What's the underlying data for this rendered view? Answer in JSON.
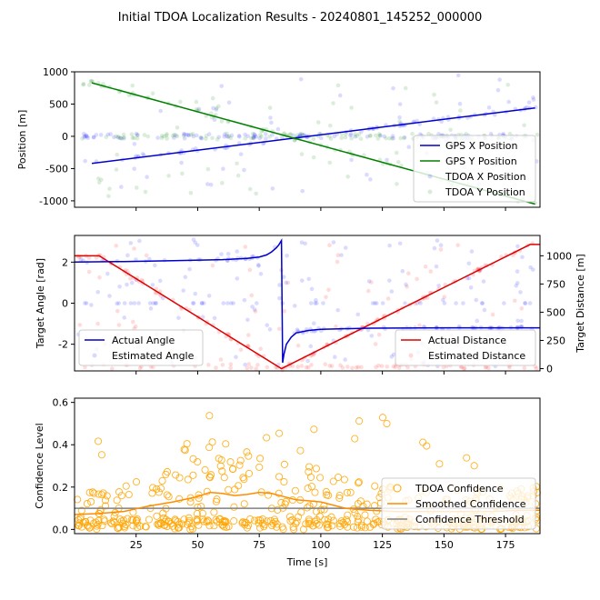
{
  "title": "Initial TDOA Localization Results - 20240801_145252_000000",
  "chart_data": [
    {
      "id": "position",
      "type": "line",
      "xlabel": "",
      "ylabel": "Position [m]",
      "xlim": [
        0,
        189
      ],
      "ylim": [
        -1100,
        1000
      ],
      "yticks": [
        1000,
        500,
        0,
        -500,
        -1000
      ],
      "legend_position": "lower-right",
      "series": [
        {
          "name": "GPS X Position",
          "color": "#0000cc",
          "kind": "line",
          "x": [
            7,
            187
          ],
          "y": [
            -420,
            440
          ]
        },
        {
          "name": "GPS Y Position",
          "color": "#008000",
          "kind": "line",
          "x": [
            7,
            187
          ],
          "y": [
            830,
            -1050
          ]
        },
        {
          "name": "TDOA X Position",
          "color": "#0000ff",
          "kind": "scatter",
          "trend_x": [
            7,
            187
          ],
          "trend_y": [
            -420,
            440
          ]
        },
        {
          "name": "TDOA Y Position",
          "color": "#008000",
          "kind": "scatter",
          "trend_x": [
            7,
            187
          ],
          "trend_y": [
            830,
            -1050
          ]
        }
      ]
    },
    {
      "id": "angle",
      "type": "line",
      "xlabel": "",
      "ylabel": "Target Angle [rad]",
      "ylabel_right": "Target Distance [m]",
      "xlim": [
        0,
        189
      ],
      "ylim": [
        -3.3,
        3.3
      ],
      "yticks": [
        2,
        0,
        -2
      ],
      "ylim_right": [
        -20,
        1180
      ],
      "yticks_right": [
        1000,
        750,
        500,
        250,
        0
      ],
      "legend_left_position": "lower-left",
      "legend_right_position": "lower-right",
      "series": [
        {
          "name": "Actual Angle",
          "color": "#0000cc",
          "kind": "line",
          "axis": "left",
          "x": [
            0,
            20,
            40,
            60,
            70,
            75,
            78,
            80,
            82,
            83,
            84,
            84.5,
            85,
            86,
            88,
            90,
            95,
            100,
            120,
            150,
            189
          ],
          "y": [
            2.0,
            2.03,
            2.07,
            2.12,
            2.18,
            2.25,
            2.35,
            2.5,
            2.7,
            2.85,
            3.05,
            -2.9,
            -2.5,
            -2.0,
            -1.65,
            -1.45,
            -1.33,
            -1.27,
            -1.22,
            -1.2,
            -1.2
          ]
        },
        {
          "name": "Estimated Angle",
          "color": "#0000ff",
          "kind": "scatter",
          "axis": "left"
        },
        {
          "name": "Actual Distance",
          "color": "#dd0000",
          "kind": "line",
          "axis": "right",
          "x": [
            0,
            10,
            84,
            185,
            189
          ],
          "y": [
            1000,
            1000,
            0,
            1100,
            1100
          ]
        },
        {
          "name": "Estimated Distance",
          "color": "#ff0000",
          "kind": "scatter",
          "axis": "right"
        }
      ]
    },
    {
      "id": "confidence",
      "type": "scatter",
      "xlabel": "Time [s]",
      "ylabel": "Confidence Level",
      "xlim": [
        0,
        189
      ],
      "ylim": [
        -0.02,
        0.62
      ],
      "xticks": [
        25,
        50,
        75,
        100,
        125,
        150,
        175
      ],
      "yticks": [
        0.0,
        0.2,
        0.4,
        0.6
      ],
      "legend_position": "lower-right",
      "series": [
        {
          "name": "TDOA Confidence",
          "color": "#ffa500",
          "kind": "scatter"
        },
        {
          "name": "Smoothed Confidence",
          "color": "#ff8c00",
          "kind": "line",
          "x": [
            0,
            10,
            20,
            30,
            40,
            50,
            55,
            60,
            65,
            70,
            75,
            80,
            85,
            90,
            95,
            100,
            110,
            120,
            130,
            140,
            150,
            160,
            170,
            180,
            189
          ],
          "y": [
            0.07,
            0.075,
            0.085,
            0.11,
            0.13,
            0.155,
            0.175,
            0.17,
            0.16,
            0.165,
            0.175,
            0.17,
            0.155,
            0.14,
            0.135,
            0.13,
            0.1,
            0.09,
            0.085,
            0.085,
            0.085,
            0.085,
            0.085,
            0.09,
            0.09
          ]
        },
        {
          "name": "Confidence Threshold",
          "color": "#808080",
          "kind": "line",
          "x": [
            0,
            189
          ],
          "y": [
            0.1,
            0.1
          ]
        }
      ]
    }
  ]
}
